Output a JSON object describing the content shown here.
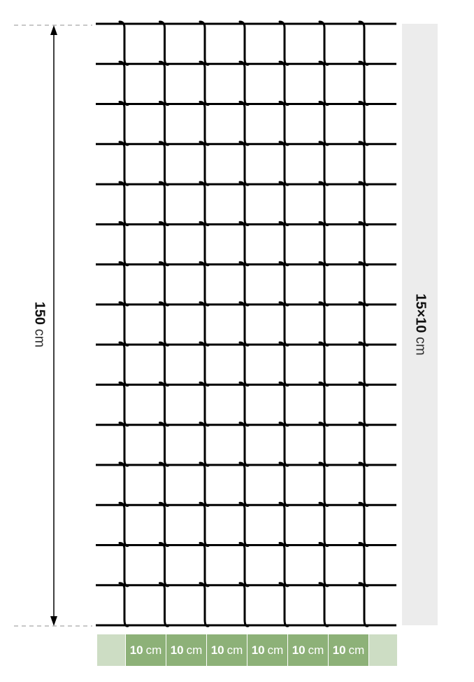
{
  "height_label": {
    "value": "150",
    "unit": "cm"
  },
  "mesh_label": {
    "value": "15×10",
    "unit": "cm"
  },
  "spacing_labels": [
    {
      "value": "10",
      "unit": "cm"
    },
    {
      "value": "10",
      "unit": "cm"
    },
    {
      "value": "10",
      "unit": "cm"
    },
    {
      "value": "10",
      "unit": "cm"
    },
    {
      "value": "10",
      "unit": "cm"
    },
    {
      "value": "10",
      "unit": "cm"
    }
  ],
  "colors": {
    "wire": "#000000",
    "band": "#ececec",
    "spacing_dark": "#8db178",
    "spacing_light": "#cdddc4"
  }
}
